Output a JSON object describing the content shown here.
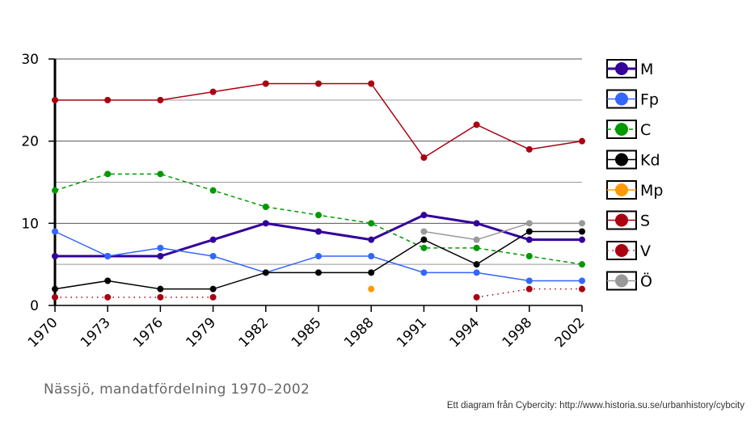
{
  "chart_data": {
    "type": "line",
    "title": "Nässjö, mandatfördelning 1970–2002",
    "xlabel": "",
    "ylabel": "",
    "categories": [
      "1970",
      "1973",
      "1976",
      "1979",
      "1982",
      "1985",
      "1988",
      "1991",
      "1994",
      "1998",
      "2002"
    ],
    "ylim": [
      0,
      30
    ],
    "yticks": [
      "0",
      "10",
      "20",
      "30"
    ],
    "series": [
      {
        "name": "M",
        "color": "#330099",
        "width": 3,
        "dash": "",
        "values": [
          6,
          6,
          6,
          8,
          10,
          9,
          8,
          11,
          10,
          8,
          8
        ]
      },
      {
        "name": "Fp",
        "color": "#3366ff",
        "width": 1.5,
        "dash": "",
        "values": [
          9,
          6,
          7,
          6,
          4,
          6,
          6,
          4,
          4,
          3,
          3
        ]
      },
      {
        "name": "C",
        "color": "#009900",
        "width": 1.5,
        "dash": "5,4",
        "values": [
          14,
          16,
          16,
          14,
          12,
          11,
          10,
          7,
          7,
          6,
          5
        ]
      },
      {
        "name": "Kd",
        "color": "#000000",
        "width": 1.5,
        "dash": "",
        "values": [
          2,
          3,
          2,
          2,
          4,
          4,
          4,
          8,
          5,
          9,
          9
        ]
      },
      {
        "name": "Mp",
        "color": "#ff9900",
        "width": 1.5,
        "dash": "",
        "values": [
          null,
          null,
          null,
          null,
          null,
          null,
          2,
          null,
          null,
          null,
          null
        ]
      },
      {
        "name": "S",
        "color": "#aa0011",
        "width": 1.5,
        "dash": "",
        "values": [
          25,
          25,
          25,
          26,
          27,
          27,
          27,
          18,
          22,
          19,
          20
        ]
      },
      {
        "name": "V",
        "color": "#aa0011",
        "width": 1.5,
        "dash": "1.5,5",
        "values": [
          1,
          1,
          1,
          1,
          null,
          null,
          null,
          null,
          1,
          2,
          2
        ]
      },
      {
        "name": "Ö",
        "color": "#999999",
        "width": 1.5,
        "dash": "",
        "values": [
          null,
          null,
          null,
          null,
          null,
          null,
          null,
          9,
          8,
          10,
          10
        ]
      }
    ]
  },
  "caption": "Nässjö, mandatfördelning 1970–2002",
  "credit": "Ett diagram från Cybercity: http://www.historia.su.se/urbanhistory/cybcity"
}
